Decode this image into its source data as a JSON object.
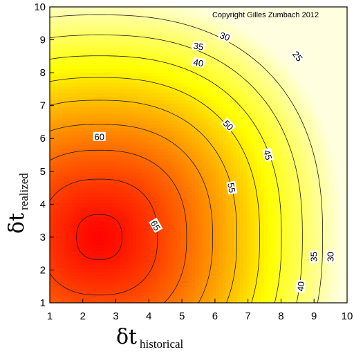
{
  "chart_data": {
    "type": "contour",
    "copyright": "Copyright Gilles Zumbach 2012",
    "xlabel": {
      "symbol": "δt",
      "subscript": "historical"
    },
    "ylabel": {
      "symbol": "δt",
      "subscript": "realized"
    },
    "xlim": [
      1,
      10
    ],
    "ylim": [
      1,
      10
    ],
    "xticks": [
      "1",
      "2",
      "3",
      "4",
      "5",
      "6",
      "7",
      "8",
      "9",
      "10"
    ],
    "yticks": [
      "1",
      "2",
      "3",
      "4",
      "5",
      "6",
      "7",
      "8",
      "9",
      "10"
    ],
    "colormap": {
      "low": "#ffffe0",
      "high": "#ff0000",
      "range": [
        20,
        70
      ]
    },
    "contour_levels": [
      25,
      30,
      35,
      40,
      45,
      50,
      55,
      60,
      65
    ],
    "contour_labels": [
      {
        "text": "25",
        "x": 8.5,
        "y": 8.5,
        "angle": 52
      },
      {
        "text": "30",
        "x": 6.3,
        "y": 9.1,
        "angle": 20
      },
      {
        "text": "35",
        "x": 5.5,
        "y": 8.8,
        "angle": 10
      },
      {
        "text": "40",
        "x": 5.5,
        "y": 8.3,
        "angle": 10
      },
      {
        "text": "50",
        "x": 6.4,
        "y": 6.4,
        "angle": 45
      },
      {
        "text": "45",
        "x": 7.6,
        "y": 5.5,
        "angle": 75
      },
      {
        "text": "55",
        "x": 6.5,
        "y": 4.5,
        "angle": 80
      },
      {
        "text": "60",
        "x": 2.5,
        "y": 6.05,
        "angle": 0
      },
      {
        "text": "65",
        "x": 4.2,
        "y": 3.35,
        "angle": 60
      },
      {
        "text": "40",
        "x": 8.6,
        "y": 1.5,
        "angle": -85
      },
      {
        "text": "35",
        "x": 9.0,
        "y": 2.4,
        "angle": -90
      },
      {
        "text": "30",
        "x": 9.5,
        "y": 2.4,
        "angle": -90
      }
    ]
  }
}
